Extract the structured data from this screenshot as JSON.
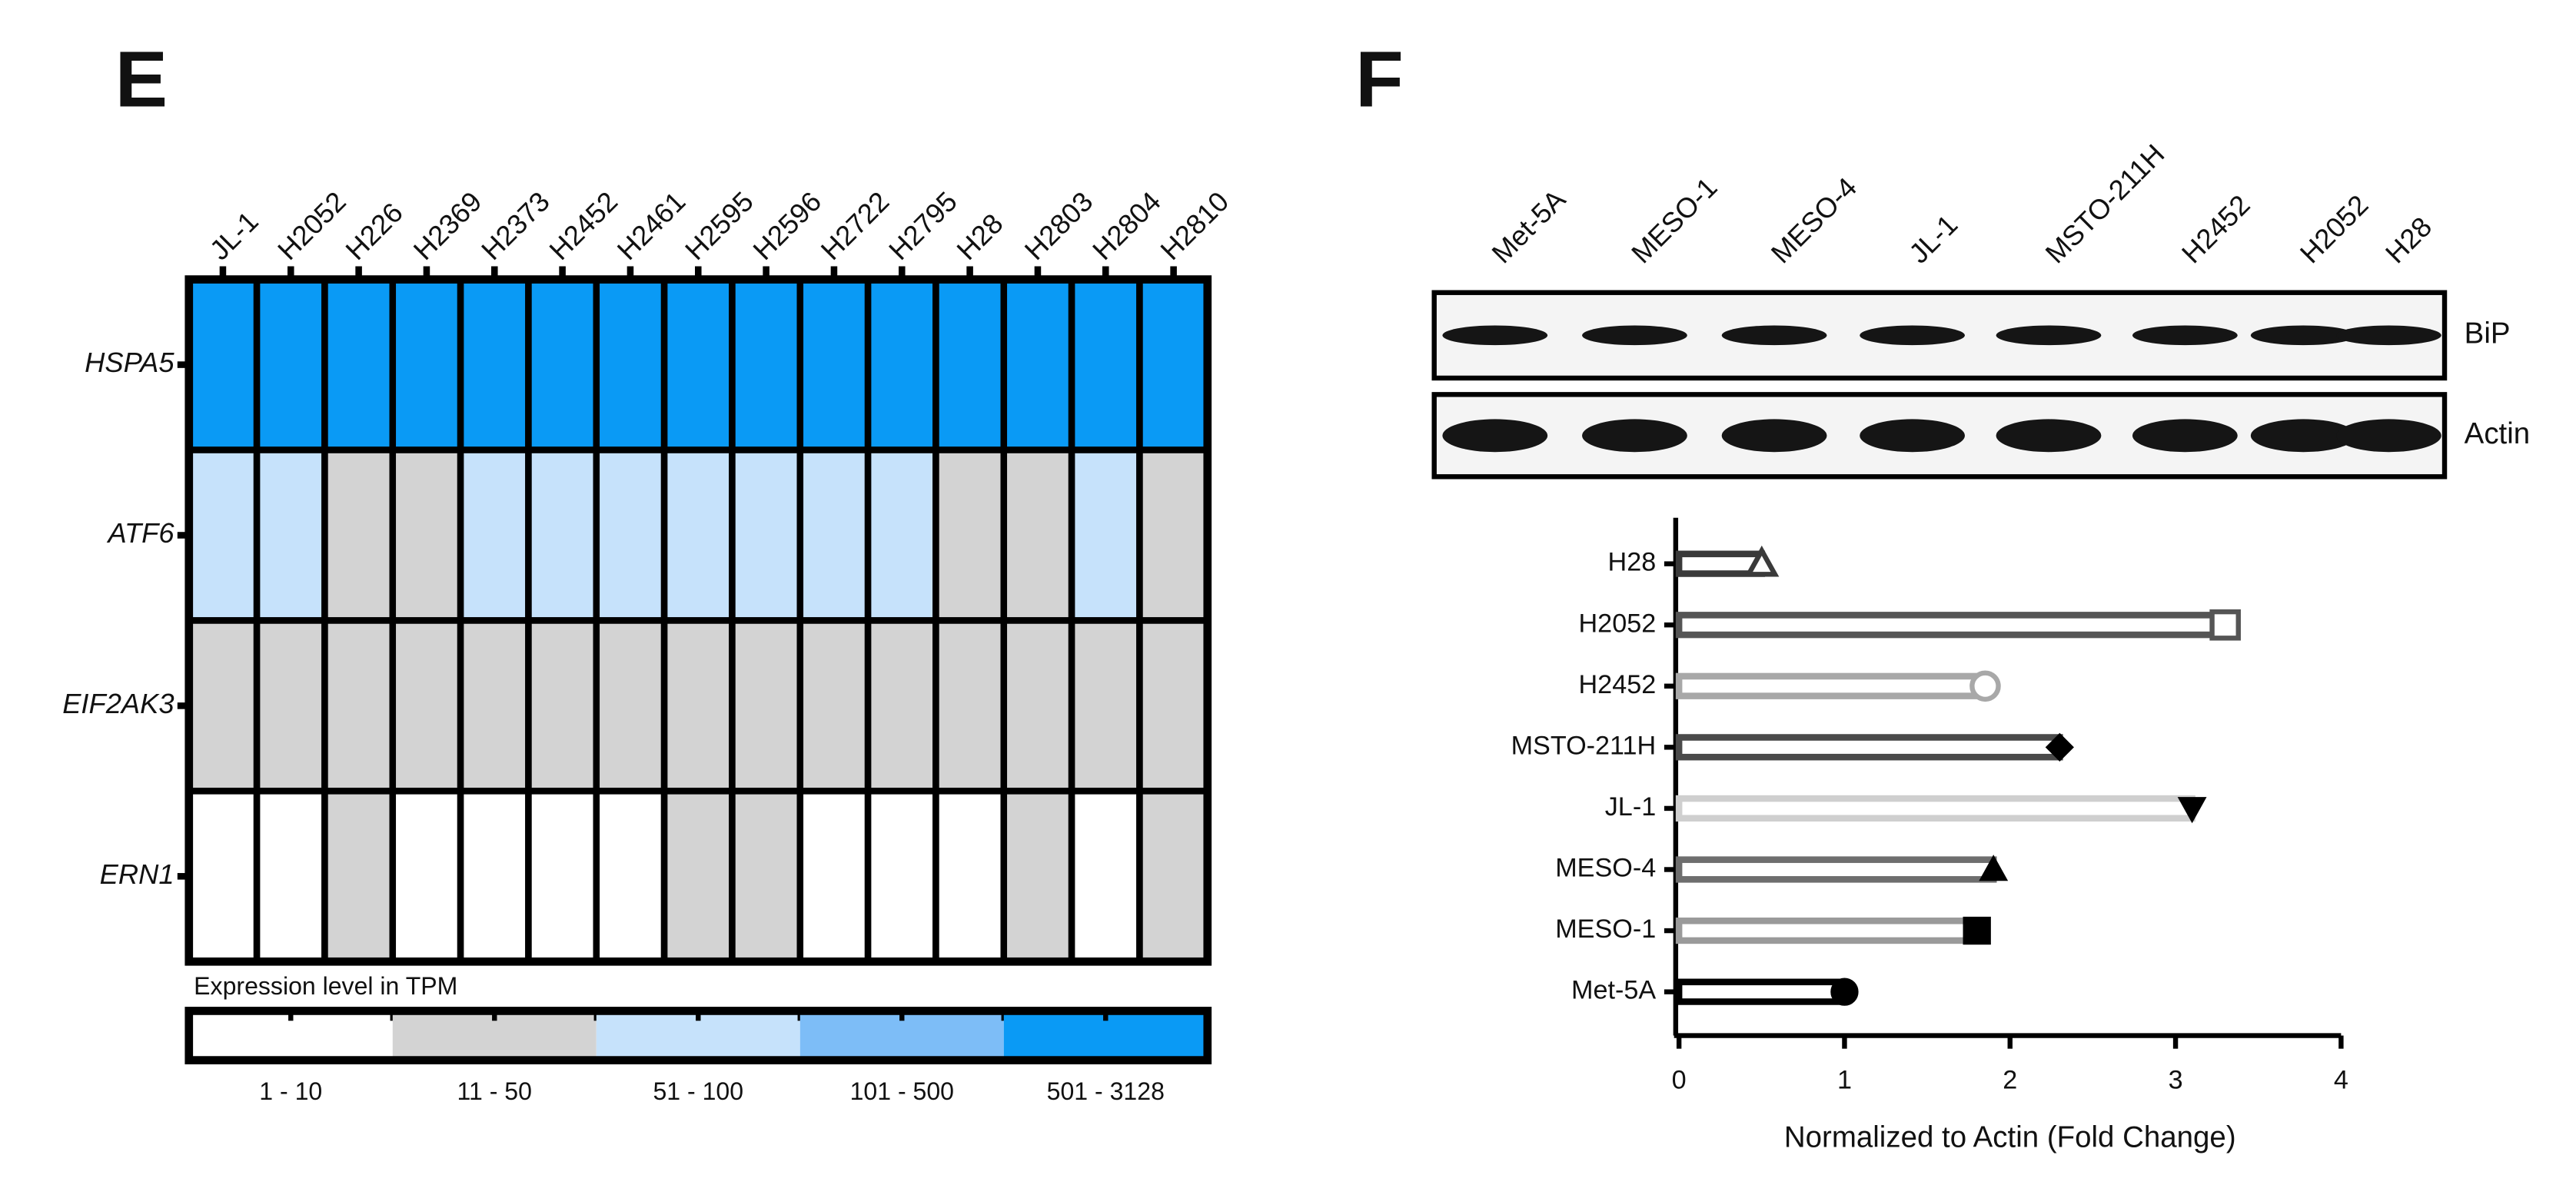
{
  "chart_data": [
    {
      "type": "heatmap",
      "panel": "E",
      "columns": [
        "JL-1",
        "H2052",
        "H226",
        "H2369",
        "H2373",
        "H2452",
        "H2461",
        "H2595",
        "H2596",
        "H2722",
        "H2795",
        "H28",
        "H2803",
        "H2804",
        "H2810"
      ],
      "rows": [
        "HSPA5",
        "ATF6",
        "EIF2AK3",
        "ERN1"
      ],
      "legend_title": "Expression level in TPM",
      "bins": [
        "1 - 10",
        "11 - 50",
        "51 - 100",
        "101 - 500",
        "501 - 3128"
      ],
      "bin_colors": [
        "#ffffff",
        "#d3d3d3",
        "#c6e2fb",
        "#7dbdf7",
        "#0a9af5"
      ],
      "values": [
        [
          "501 - 3128",
          "501 - 3128",
          "501 - 3128",
          "501 - 3128",
          "501 - 3128",
          "501 - 3128",
          "501 - 3128",
          "501 - 3128",
          "501 - 3128",
          "501 - 3128",
          "501 - 3128",
          "501 - 3128",
          "501 - 3128",
          "501 - 3128",
          "501 - 3128"
        ],
        [
          "51 - 100",
          "51 - 100",
          "11 - 50",
          "11 - 50",
          "51 - 100",
          "51 - 100",
          "51 - 100",
          "51 - 100",
          "51 - 100",
          "51 - 100",
          "51 - 100",
          "11 - 50",
          "11 - 50",
          "51 - 100",
          "11 - 50"
        ],
        [
          "11 - 50",
          "11 - 50",
          "11 - 50",
          "11 - 50",
          "11 - 50",
          "11 - 50",
          "11 - 50",
          "11 - 50",
          "11 - 50",
          "11 - 50",
          "11 - 50",
          "11 - 50",
          "11 - 50",
          "11 - 50",
          "11 - 50"
        ],
        [
          "1 - 10",
          "1 - 10",
          "11 - 50",
          "1 - 10",
          "1 - 10",
          "1 - 10",
          "1 - 10",
          "11 - 50",
          "11 - 50",
          "1 - 10",
          "1 - 10",
          "1 - 10",
          "11 - 50",
          "1 - 10",
          "11 - 50"
        ]
      ]
    },
    {
      "type": "hbar",
      "panel": "F",
      "blot": {
        "lanes": [
          "Met-5A",
          "MESO-1",
          "MESO-4",
          "JL-1",
          "MSTO-211H",
          "H2452",
          "H2052",
          "H28"
        ],
        "bands": [
          "BiP",
          "Actin"
        ]
      },
      "categories": [
        "H28",
        "H2052",
        "H2452",
        "MSTO-211H",
        "JL-1",
        "MESO-4",
        "MESO-1",
        "Met-5A"
      ],
      "values": [
        0.5,
        3.3,
        1.85,
        2.3,
        3.1,
        1.9,
        1.8,
        1.0
      ],
      "colors": [
        "#3a3a3a",
        "#555555",
        "#a8a8a8",
        "#4a4a4a",
        "#cfcfcf",
        "#6e6e6e",
        "#9a9a9a",
        "#000000"
      ],
      "markers": [
        "triangle-open",
        "square-open",
        "circle-open",
        "diamond",
        "triangle-down",
        "triangle",
        "square",
        "circle"
      ],
      "xlabel": "Normalized to Actin (Fold Change)",
      "xlim": [
        0,
        4
      ],
      "xticks": [
        0,
        1,
        2,
        3,
        4
      ]
    }
  ]
}
